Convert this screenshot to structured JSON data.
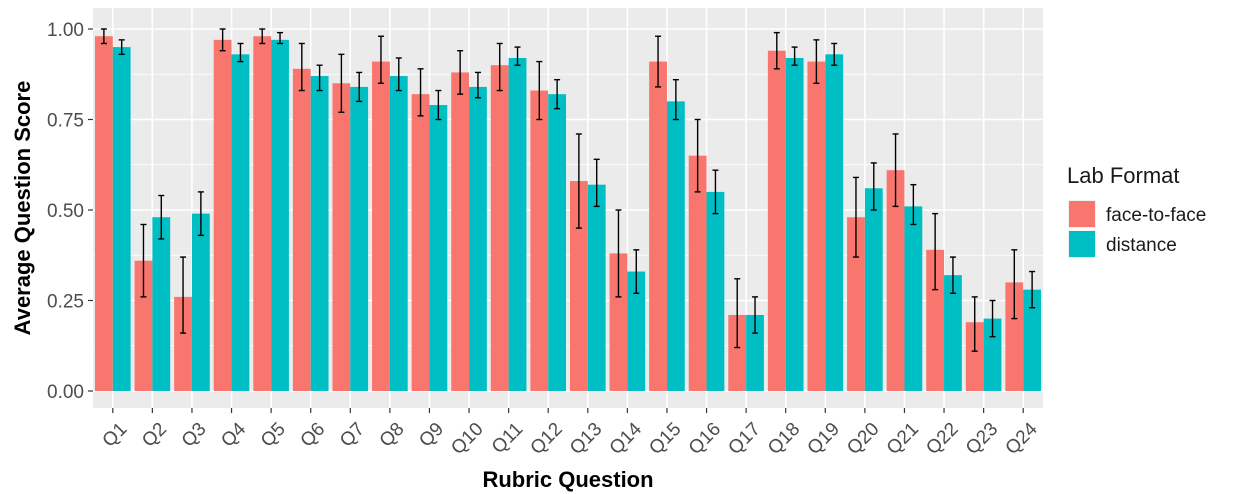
{
  "chart_data": {
    "type": "bar",
    "title": "",
    "xlabel": "Rubric Question",
    "ylabel": "Average Question Score",
    "ylim": [
      0,
      1.05
    ],
    "yticks": [
      "0.00",
      "0.25",
      "0.50",
      "0.75",
      "1.00"
    ],
    "ytick_values": [
      0,
      0.25,
      0.5,
      0.75,
      1.0
    ],
    "grid": true,
    "legend": {
      "title": "Lab Format",
      "position": "right"
    },
    "categories": [
      "Q1",
      "Q2",
      "Q3",
      "Q4",
      "Q5",
      "Q6",
      "Q7",
      "Q8",
      "Q9",
      "Q10",
      "Q11",
      "Q12",
      "Q13",
      "Q14",
      "Q15",
      "Q16",
      "Q17",
      "Q18",
      "Q19",
      "Q20",
      "Q21",
      "Q22",
      "Q23",
      "Q24"
    ],
    "series": [
      {
        "name": "face-to-face",
        "color": "#F8766D",
        "values": [
          0.98,
          0.36,
          0.26,
          0.97,
          0.98,
          0.89,
          0.85,
          0.91,
          0.82,
          0.88,
          0.9,
          0.83,
          0.58,
          0.38,
          0.91,
          0.65,
          0.21,
          0.94,
          0.91,
          0.48,
          0.61,
          0.39,
          0.19,
          0.3
        ],
        "err_low": [
          0.96,
          0.26,
          0.16,
          0.94,
          0.96,
          0.83,
          0.77,
          0.85,
          0.76,
          0.82,
          0.83,
          0.75,
          0.45,
          0.26,
          0.84,
          0.55,
          0.12,
          0.89,
          0.85,
          0.37,
          0.51,
          0.28,
          0.11,
          0.2
        ],
        "err_high": [
          1.0,
          0.46,
          0.37,
          1.0,
          1.0,
          0.96,
          0.93,
          0.98,
          0.89,
          0.94,
          0.96,
          0.91,
          0.71,
          0.5,
          0.98,
          0.75,
          0.31,
          0.99,
          0.97,
          0.59,
          0.71,
          0.49,
          0.26,
          0.39
        ]
      },
      {
        "name": "distance",
        "color": "#00BFC4",
        "values": [
          0.95,
          0.48,
          0.49,
          0.93,
          0.97,
          0.87,
          0.84,
          0.87,
          0.79,
          0.84,
          0.92,
          0.82,
          0.57,
          0.33,
          0.8,
          0.55,
          0.21,
          0.92,
          0.93,
          0.56,
          0.51,
          0.32,
          0.2,
          0.28
        ],
        "err_low": [
          0.93,
          0.42,
          0.43,
          0.91,
          0.96,
          0.83,
          0.8,
          0.83,
          0.75,
          0.81,
          0.9,
          0.78,
          0.51,
          0.27,
          0.75,
          0.49,
          0.16,
          0.9,
          0.9,
          0.5,
          0.46,
          0.27,
          0.15,
          0.23
        ],
        "err_high": [
          0.97,
          0.54,
          0.55,
          0.96,
          0.99,
          0.9,
          0.88,
          0.92,
          0.83,
          0.88,
          0.95,
          0.86,
          0.64,
          0.39,
          0.86,
          0.61,
          0.26,
          0.95,
          0.96,
          0.63,
          0.57,
          0.37,
          0.25,
          0.33
        ]
      }
    ]
  }
}
